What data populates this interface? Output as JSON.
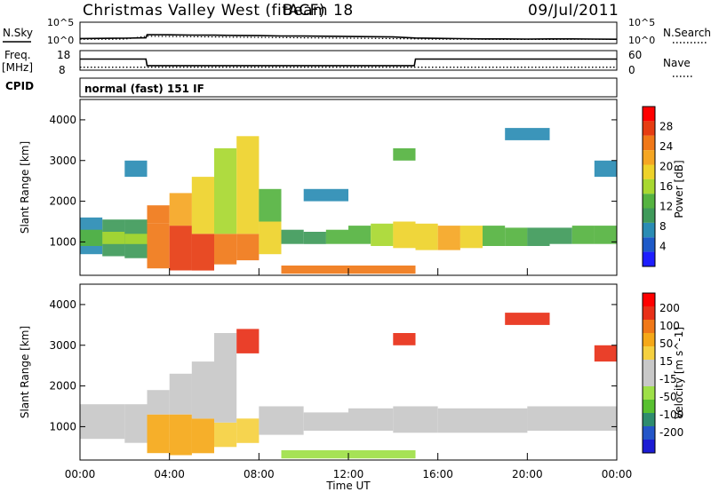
{
  "header": {
    "title": "Christmas Valley West (fitACF)",
    "beam": "Beam 18",
    "date": "09/Jul/2011"
  },
  "aux": {
    "nsky_label": "N.Sky",
    "nsky_ticks": [
      "10^5",
      "10^0"
    ],
    "nsearch_label": "N.Search",
    "freq_label": "Freq.",
    "freq_unit": "[MHz]",
    "freq_ticks": [
      "18",
      "8"
    ],
    "nave_label": "Nave",
    "nave_ticks": [
      "60",
      "0"
    ],
    "cpid_label": "CPID",
    "cpid_value": "normal (fast) 151 IF"
  },
  "colors": {
    "power": [
      "#1e1eff",
      "#1e5ac8",
      "#2a8cb4",
      "#3f9a5a",
      "#55b340",
      "#a8d830",
      "#eed22a",
      "#f5a623",
      "#f07818",
      "#e63c12",
      "#ff0000"
    ],
    "velocity": [
      "#1c1cd4",
      "#2456c8",
      "#2e8c6e",
      "#58c030",
      "#9ee048",
      "#c8c8c8",
      "#c8c8c8",
      "#f5d040",
      "#f5a818",
      "#f07818",
      "#e83018",
      "#ff0000"
    ]
  },
  "chart_data": [
    {
      "type": "line",
      "panel": "noise",
      "series": [
        {
          "name": "N.Sky",
          "x": [
            0,
            1,
            2,
            2.95,
            3.0,
            4,
            5,
            6,
            7,
            8,
            9,
            10,
            11,
            12,
            13,
            14,
            15,
            16,
            17,
            18,
            19,
            20,
            21,
            22,
            23,
            24
          ],
          "values": [
            15,
            16,
            18,
            22,
            120,
            110,
            95,
            90,
            80,
            70,
            60,
            55,
            50,
            45,
            40,
            35,
            20,
            16,
            14,
            12,
            12,
            11,
            12,
            12,
            11,
            10
          ]
        },
        {
          "name": "N.Search",
          "x": [
            0,
            1,
            2,
            3,
            4,
            5,
            6,
            7,
            8,
            9,
            10,
            11,
            12,
            13,
            14,
            15,
            16,
            17,
            18,
            19,
            20,
            21,
            22,
            23,
            24
          ],
          "values": [
            10,
            10,
            11,
            50,
            45,
            40,
            35,
            30,
            28,
            25,
            22,
            20,
            18,
            16,
            14,
            12,
            10,
            10,
            10,
            9,
            9,
            9,
            10,
            10,
            9
          ]
        }
      ],
      "ylim": [
        1,
        100000
      ],
      "yscale": "log"
    },
    {
      "type": "line",
      "panel": "freq_nave",
      "series": [
        {
          "name": "Freq.",
          "x": [
            0,
            2.95,
            3.0,
            14.95,
            15.0,
            24
          ],
          "values": [
            13.7,
            13.7,
            10.3,
            10.3,
            13.7,
            13.7
          ]
        },
        {
          "name": "Nave",
          "x": [
            0,
            24
          ],
          "values": [
            9,
            9
          ]
        }
      ],
      "ylim": [
        8,
        18
      ],
      "y2lim": [
        0,
        60
      ]
    },
    {
      "type": "heatmap",
      "panel": "power",
      "ylabel": "Slant Range [km]",
      "xlim": [
        0,
        24
      ],
      "ylim": [
        180,
        4500
      ],
      "yticks": [
        1000,
        2000,
        3000,
        4000
      ],
      "colorbar": {
        "label": "Power [dB]",
        "min": 0,
        "max": 32,
        "ticks": [
          4,
          8,
          12,
          16,
          20,
          24,
          28
        ]
      },
      "cells": [
        [
          0,
          1,
          700,
          1600,
          8
        ],
        [
          0,
          1,
          900,
          1300,
          14
        ],
        [
          1,
          2,
          650,
          1550,
          9
        ],
        [
          1,
          2,
          950,
          1250,
          15
        ],
        [
          2,
          3,
          600,
          1550,
          10
        ],
        [
          2,
          3,
          950,
          1200,
          17
        ],
        [
          3,
          4,
          350,
          1450,
          24
        ],
        [
          3,
          4,
          1450,
          1900,
          26
        ],
        [
          4,
          5,
          300,
          1400,
          27
        ],
        [
          4,
          5,
          1400,
          2200,
          22
        ],
        [
          5,
          6,
          300,
          1200,
          28
        ],
        [
          5,
          6,
          1200,
          2600,
          18
        ],
        [
          6,
          7,
          450,
          1200,
          26
        ],
        [
          6,
          7,
          1200,
          3300,
          16
        ],
        [
          7,
          8,
          550,
          1200,
          24
        ],
        [
          7,
          8,
          1200,
          3600,
          18
        ],
        [
          8,
          9,
          700,
          1500,
          20
        ],
        [
          8,
          9,
          1500,
          2300,
          14
        ],
        [
          9,
          10,
          950,
          1300,
          10
        ],
        [
          10,
          11,
          950,
          1250,
          10
        ],
        [
          11,
          12,
          950,
          1300,
          12
        ],
        [
          12,
          13,
          950,
          1400,
          14
        ],
        [
          13,
          14,
          900,
          1450,
          16
        ],
        [
          14,
          15,
          850,
          1500,
          18
        ],
        [
          15,
          16,
          800,
          1450,
          20
        ],
        [
          16,
          17,
          800,
          1400,
          22
        ],
        [
          17,
          18,
          850,
          1400,
          18
        ],
        [
          18,
          19,
          900,
          1400,
          14
        ],
        [
          19,
          20,
          900,
          1350,
          12
        ],
        [
          20,
          21,
          900,
          1350,
          10
        ],
        [
          21,
          22,
          950,
          1350,
          10
        ],
        [
          22,
          23,
          950,
          1400,
          12
        ],
        [
          23,
          24,
          950,
          1400,
          14
        ],
        [
          9,
          15,
          220,
          420,
          26
        ],
        [
          2,
          3,
          2600,
          3000,
          6
        ],
        [
          10,
          12,
          2000,
          2300,
          6
        ],
        [
          19,
          21,
          3500,
          3800,
          8
        ],
        [
          23,
          24,
          2600,
          3000,
          8
        ],
        [
          14,
          15,
          3000,
          3300,
          12
        ]
      ]
    },
    {
      "type": "heatmap",
      "panel": "velocity",
      "ylabel": "Slant Range [km]",
      "xlabel": "Time UT",
      "xlim": [
        0,
        24
      ],
      "xticks": [
        "00:00",
        "04:00",
        "08:00",
        "12:00",
        "16:00",
        "20:00",
        "00:00"
      ],
      "ylim": [
        180,
        4500
      ],
      "yticks": [
        1000,
        2000,
        3000,
        4000
      ],
      "colorbar": {
        "label": "Velocity [m s^-1]",
        "ticks": [
          "200",
          "100",
          "50",
          "15",
          "-15",
          "-50",
          "-100",
          "-200"
        ]
      },
      "cells": [
        [
          0,
          2,
          700,
          1550,
          5
        ],
        [
          2,
          3,
          600,
          1550,
          5
        ],
        [
          3,
          4,
          350,
          1300,
          8
        ],
        [
          3,
          4,
          1300,
          1900,
          5
        ],
        [
          4,
          5,
          300,
          1300,
          8
        ],
        [
          4,
          5,
          1300,
          2300,
          6
        ],
        [
          5,
          6,
          350,
          1200,
          8
        ],
        [
          5,
          6,
          1200,
          2600,
          5
        ],
        [
          6,
          7,
          500,
          1100,
          7
        ],
        [
          6,
          7,
          1100,
          3300,
          6
        ],
        [
          7,
          8,
          600,
          1200,
          7
        ],
        [
          7,
          8,
          2800,
          3400,
          10
        ],
        [
          8,
          10,
          800,
          1500,
          5
        ],
        [
          10,
          12,
          900,
          1350,
          5
        ],
        [
          12,
          14,
          900,
          1450,
          5
        ],
        [
          14,
          16,
          850,
          1500,
          5
        ],
        [
          16,
          20,
          850,
          1450,
          5
        ],
        [
          20,
          24,
          900,
          1500,
          5
        ],
        [
          9,
          15,
          220,
          420,
          4
        ],
        [
          19,
          21,
          3500,
          3800,
          10
        ],
        [
          23,
          24,
          2600,
          3000,
          10
        ],
        [
          14,
          15,
          3000,
          3300,
          10
        ]
      ]
    }
  ]
}
